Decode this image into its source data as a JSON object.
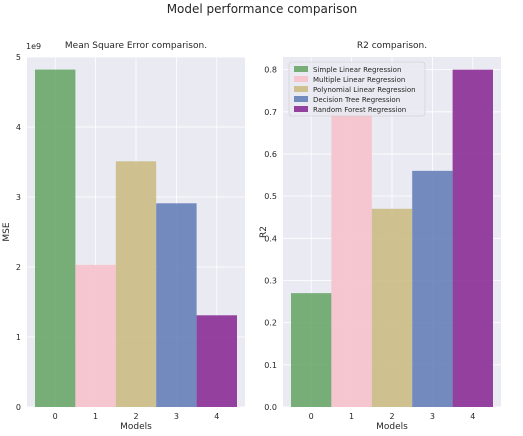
{
  "figure": {
    "suptitle": "Model performance comparison",
    "colors": {
      "plot_background": "#eaeaf2",
      "grid": "#ffffff",
      "bar_colors": [
        "#6aa76a",
        "#f6c1cc",
        "#cbbd84",
        "#6580b8",
        "#892d96"
      ],
      "text": "#262626"
    }
  },
  "chart_data": [
    {
      "type": "bar",
      "title": "Mean Square Error comparison.",
      "xlabel": "Models",
      "ylabel": "MSE",
      "offset_label": "1e9",
      "categories": [
        "0",
        "1",
        "2",
        "3",
        "4"
      ],
      "values": [
        4.82,
        2.03,
        3.51,
        2.91,
        1.31
      ],
      "ylim": [
        0,
        5
      ],
      "yticks": [
        "0",
        "1",
        "2",
        "3",
        "4",
        "5"
      ],
      "grid": true
    },
    {
      "type": "bar",
      "title": "R2 comparison.",
      "xlabel": "Models",
      "ylabel": "R2",
      "categories": [
        "0",
        "1",
        "2",
        "3",
        "4"
      ],
      "values": [
        0.27,
        0.7,
        0.47,
        0.56,
        0.8
      ],
      "ylim": [
        0,
        0.83
      ],
      "yticks": [
        "0.0",
        "0.1",
        "0.2",
        "0.3",
        "0.4",
        "0.5",
        "0.6",
        "0.7",
        "0.8"
      ],
      "grid": true,
      "legend": {
        "placement": "top-left",
        "entries": [
          "Simple Linear Regression",
          "Multiple Linear Regression",
          "Polynomial Linear Regression",
          "Decision Tree Regression",
          "Random Forest Regression"
        ]
      }
    }
  ]
}
